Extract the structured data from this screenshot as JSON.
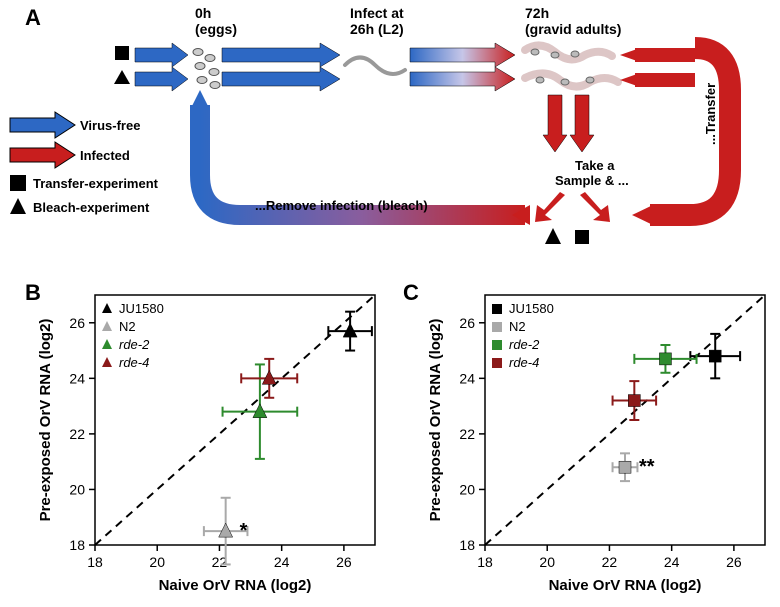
{
  "panel_labels": {
    "a": "A",
    "b": "B",
    "c": "C"
  },
  "diagram": {
    "timeline": {
      "t0": "0h\n(eggs)",
      "t26": "Infect at\n26h (L2)",
      "t72": "72h\n(gravid adults)"
    },
    "legend": {
      "virus_free": "Virus-free",
      "infected": "Infected",
      "transfer": "Transfer-experiment",
      "bleach": "Bleach-experiment"
    },
    "labels": {
      "transfer_text": "...Transfer",
      "sample_text": "Take a\nSample & ...",
      "remove_text": "...Remove infection (bleach)"
    },
    "colors": {
      "blue": "#2d68c4",
      "red": "#c81e1e",
      "black": "#000000"
    }
  },
  "chart_b": {
    "type": "scatter",
    "xlabel": "Naive OrV RNA (log2)",
    "ylabel": "Pre-exposed OrV RNA (log2)",
    "xlim": [
      18,
      27
    ],
    "ylim": [
      18,
      27
    ],
    "tick_step": 2,
    "marker": "triangle",
    "series": [
      {
        "name": "JU1580",
        "color": "#000000",
        "x": 26.2,
        "y": 25.7,
        "xerr": 0.7,
        "yerr": 0.7
      },
      {
        "name": "N2",
        "color": "#a9a9a9",
        "x": 22.2,
        "y": 18.5,
        "xerr": 0.7,
        "yerr": 1.2,
        "sig": "*"
      },
      {
        "name": "rde-2",
        "color": "#2e8b2e",
        "x": 23.3,
        "y": 22.8,
        "xerr": 1.2,
        "yerr": 1.7
      },
      {
        "name": "rde-4",
        "color": "#8b1a1a",
        "x": 23.6,
        "y": 24.0,
        "xerr": 0.9,
        "yerr": 0.7
      }
    ],
    "background": "#ffffff",
    "grid": false
  },
  "chart_c": {
    "type": "scatter",
    "xlabel": "Naive OrV RNA (log2)",
    "ylabel": "Pre-exposed OrV RNA (log2)",
    "xlim": [
      18,
      27
    ],
    "ylim": [
      18,
      27
    ],
    "tick_step": 2,
    "marker": "square",
    "series": [
      {
        "name": "JU1580",
        "color": "#000000",
        "x": 25.4,
        "y": 24.8,
        "xerr": 0.8,
        "yerr": 0.8
      },
      {
        "name": "N2",
        "color": "#a9a9a9",
        "x": 22.5,
        "y": 20.8,
        "xerr": 0.4,
        "yerr": 0.5,
        "sig": "**"
      },
      {
        "name": "rde-2",
        "color": "#2e8b2e",
        "x": 23.8,
        "y": 24.7,
        "xerr": 1.0,
        "yerr": 0.5
      },
      {
        "name": "rde-4",
        "color": "#8b1a1a",
        "x": 22.8,
        "y": 23.2,
        "xerr": 0.7,
        "yerr": 0.7
      }
    ],
    "background": "#ffffff",
    "grid": false
  }
}
